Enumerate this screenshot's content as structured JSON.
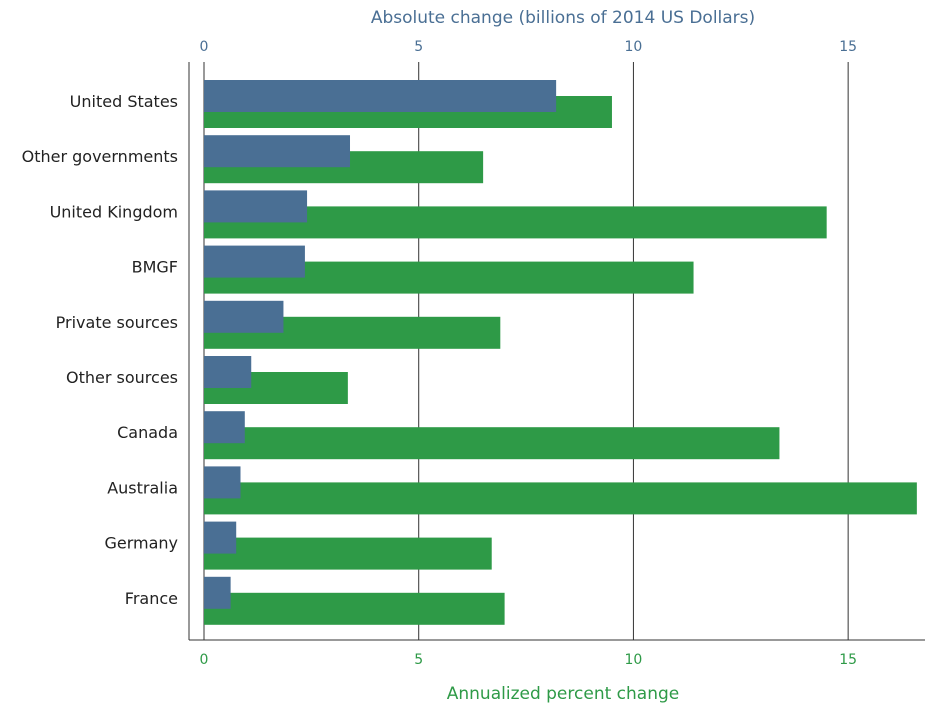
{
  "chart_data": {
    "type": "bar",
    "orientation": "horizontal",
    "categories": [
      "United States",
      "Other governments",
      "United Kingdom",
      "BMGF",
      "Private sources",
      "Other sources",
      "Canada",
      "Australia",
      "Germany",
      "France"
    ],
    "series": [
      {
        "axis": "top",
        "color": "#4a6f94",
        "values": [
          8.2,
          3.4,
          2.4,
          2.35,
          1.85,
          1.1,
          0.95,
          0.85,
          0.75,
          0.62
        ]
      },
      {
        "axis": "bottom",
        "color": "#2e9a47",
        "values": [
          9.5,
          6.5,
          14.5,
          11.4,
          6.9,
          3.35,
          13.4,
          16.6,
          6.7,
          7.0
        ]
      }
    ],
    "top_axis": {
      "label": "Absolute change (billions of 2014 US Dollars)",
      "ticks": [
        0,
        5,
        10,
        15
      ],
      "range": [
        0,
        16.65
      ],
      "color": "#4a6f94"
    },
    "bottom_axis": {
      "label": "Annualized percent change",
      "ticks": [
        0,
        5,
        10,
        15
      ],
      "range": [
        0,
        16.65
      ],
      "color": "#2e9a47"
    },
    "grid": "vertical lines at major ticks",
    "gridline_color": "#333333"
  }
}
